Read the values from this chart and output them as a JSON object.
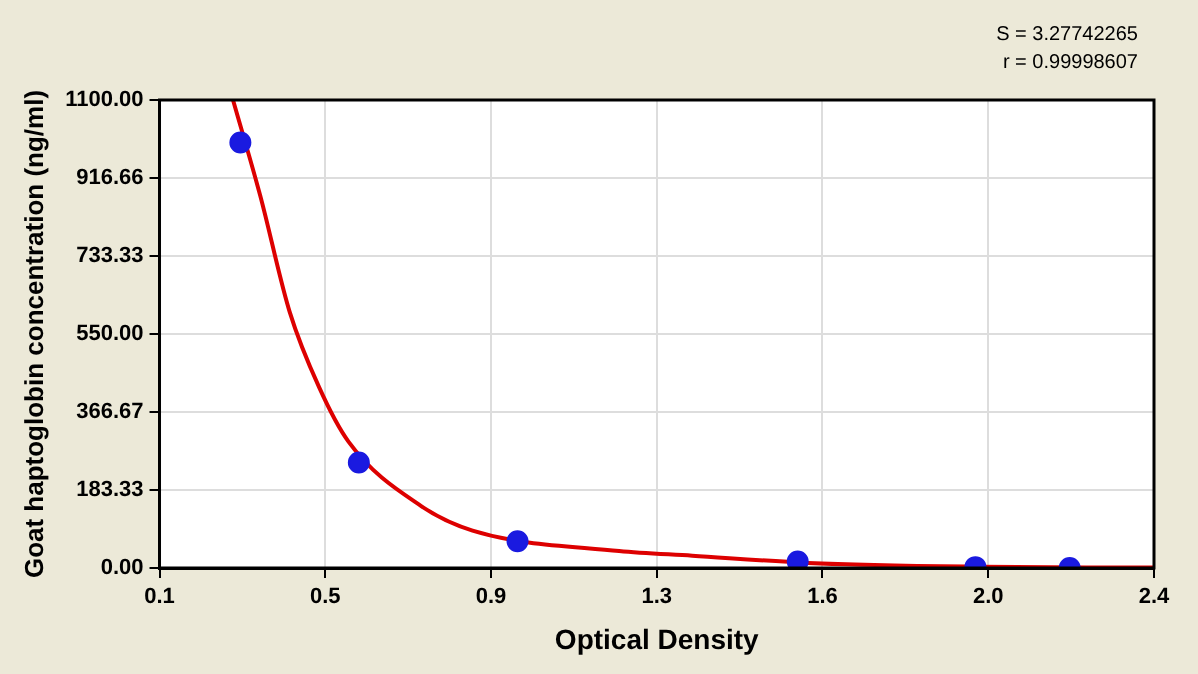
{
  "chart_data": {
    "type": "scatter",
    "xlabel": "Optical Density",
    "ylabel": "Goat haptoglobin concentration (ng/ml)",
    "annotations": [
      "S = 3.27742265",
      "r = 0.99998607"
    ],
    "xlim": [
      0.1,
      2.4
    ],
    "xticks": [
      {
        "value": 0.1,
        "label": "0.1"
      },
      {
        "value": 0.4833,
        "label": "0.5"
      },
      {
        "value": 0.8667,
        "label": "0.9"
      },
      {
        "value": 1.25,
        "label": "1.3"
      },
      {
        "value": 1.6333,
        "label": "1.6"
      },
      {
        "value": 2.0167,
        "label": "2.0"
      },
      {
        "value": 2.4,
        "label": "2.4"
      }
    ],
    "ylim": [
      0,
      1100
    ],
    "yticks": [
      {
        "value": 0,
        "label": "0.00"
      },
      {
        "value": 183.33,
        "label": "183.33"
      },
      {
        "value": 366.67,
        "label": "366.67"
      },
      {
        "value": 550,
        "label": "550.00"
      },
      {
        "value": 733.33,
        "label": "733.33"
      },
      {
        "value": 916.66,
        "label": "916.66"
      },
      {
        "value": 1100,
        "label": "1100.00"
      }
    ],
    "grid": true,
    "marker": "circle",
    "series": [
      {
        "type": "line",
        "marker": "none",
        "color": "#dd0000",
        "x": [
          0.27,
          0.333,
          0.401,
          0.469,
          0.537,
          0.706,
          0.824,
          1.163,
          1.332,
          1.6,
          2.0,
          2.4
        ],
        "values": [
          1100,
          875,
          602,
          425,
          297,
          145,
          88,
          40,
          29,
          12,
          3,
          1
        ]
      },
      {
        "color": "#1a1ae0",
        "x": [
          0.287,
          0.561,
          0.928,
          1.576,
          1.987,
          2.205
        ],
        "values": [
          1000,
          248,
          63,
          15,
          2,
          0
        ]
      }
    ]
  }
}
